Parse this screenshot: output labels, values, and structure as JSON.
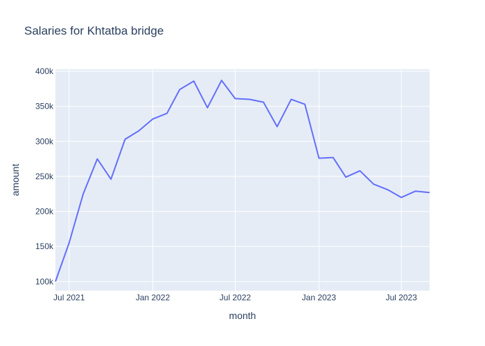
{
  "chart_data": {
    "type": "line",
    "title": "Salaries for Khtatba bridge",
    "xlabel": "month",
    "ylabel": "amount",
    "x_tick_labels": [
      "Jul 2021",
      "Jan 2022",
      "Jul 2022",
      "Jan 2023",
      "Jul 2023"
    ],
    "x_tick_dates": [
      "2021-07-01",
      "2022-01-01",
      "2022-07-01",
      "2023-01-01",
      "2023-07-01"
    ],
    "y_tick_labels": [
      "100k",
      "150k",
      "200k",
      "250k",
      "300k",
      "350k",
      "400k"
    ],
    "y_tick_values": [
      100000,
      150000,
      200000,
      250000,
      300000,
      350000,
      400000
    ],
    "xlim": [
      "2021-06-01",
      "2023-09-01"
    ],
    "ylim": [
      87000,
      403000
    ],
    "grid": true,
    "colors": {
      "line": "#636efa",
      "plot_bg": "#e5ecf6",
      "grid": "#ffffff",
      "text": "#2a3f5f"
    },
    "series": [
      {
        "x": [
          "2021-06-01",
          "2021-07-01",
          "2021-08-01",
          "2021-09-01",
          "2021-10-01",
          "2021-11-01",
          "2021-12-01",
          "2022-01-01",
          "2022-02-01",
          "2022-03-01",
          "2022-04-01",
          "2022-05-01",
          "2022-06-01",
          "2022-07-01",
          "2022-08-01",
          "2022-09-01",
          "2022-10-01",
          "2022-11-01",
          "2022-12-01",
          "2023-01-01",
          "2023-02-01",
          "2023-03-01",
          "2023-04-01",
          "2023-05-01",
          "2023-06-01",
          "2023-07-01",
          "2023-08-01",
          "2023-09-01"
        ],
        "values": [
          100000,
          155000,
          225000,
          275000,
          246000,
          303000,
          315000,
          332000,
          340000,
          374000,
          386000,
          348000,
          387000,
          361000,
          360000,
          356000,
          321000,
          360000,
          353000,
          276000,
          277000,
          249000,
          258000,
          239000,
          231000,
          220000,
          229000,
          227000
        ]
      }
    ]
  }
}
